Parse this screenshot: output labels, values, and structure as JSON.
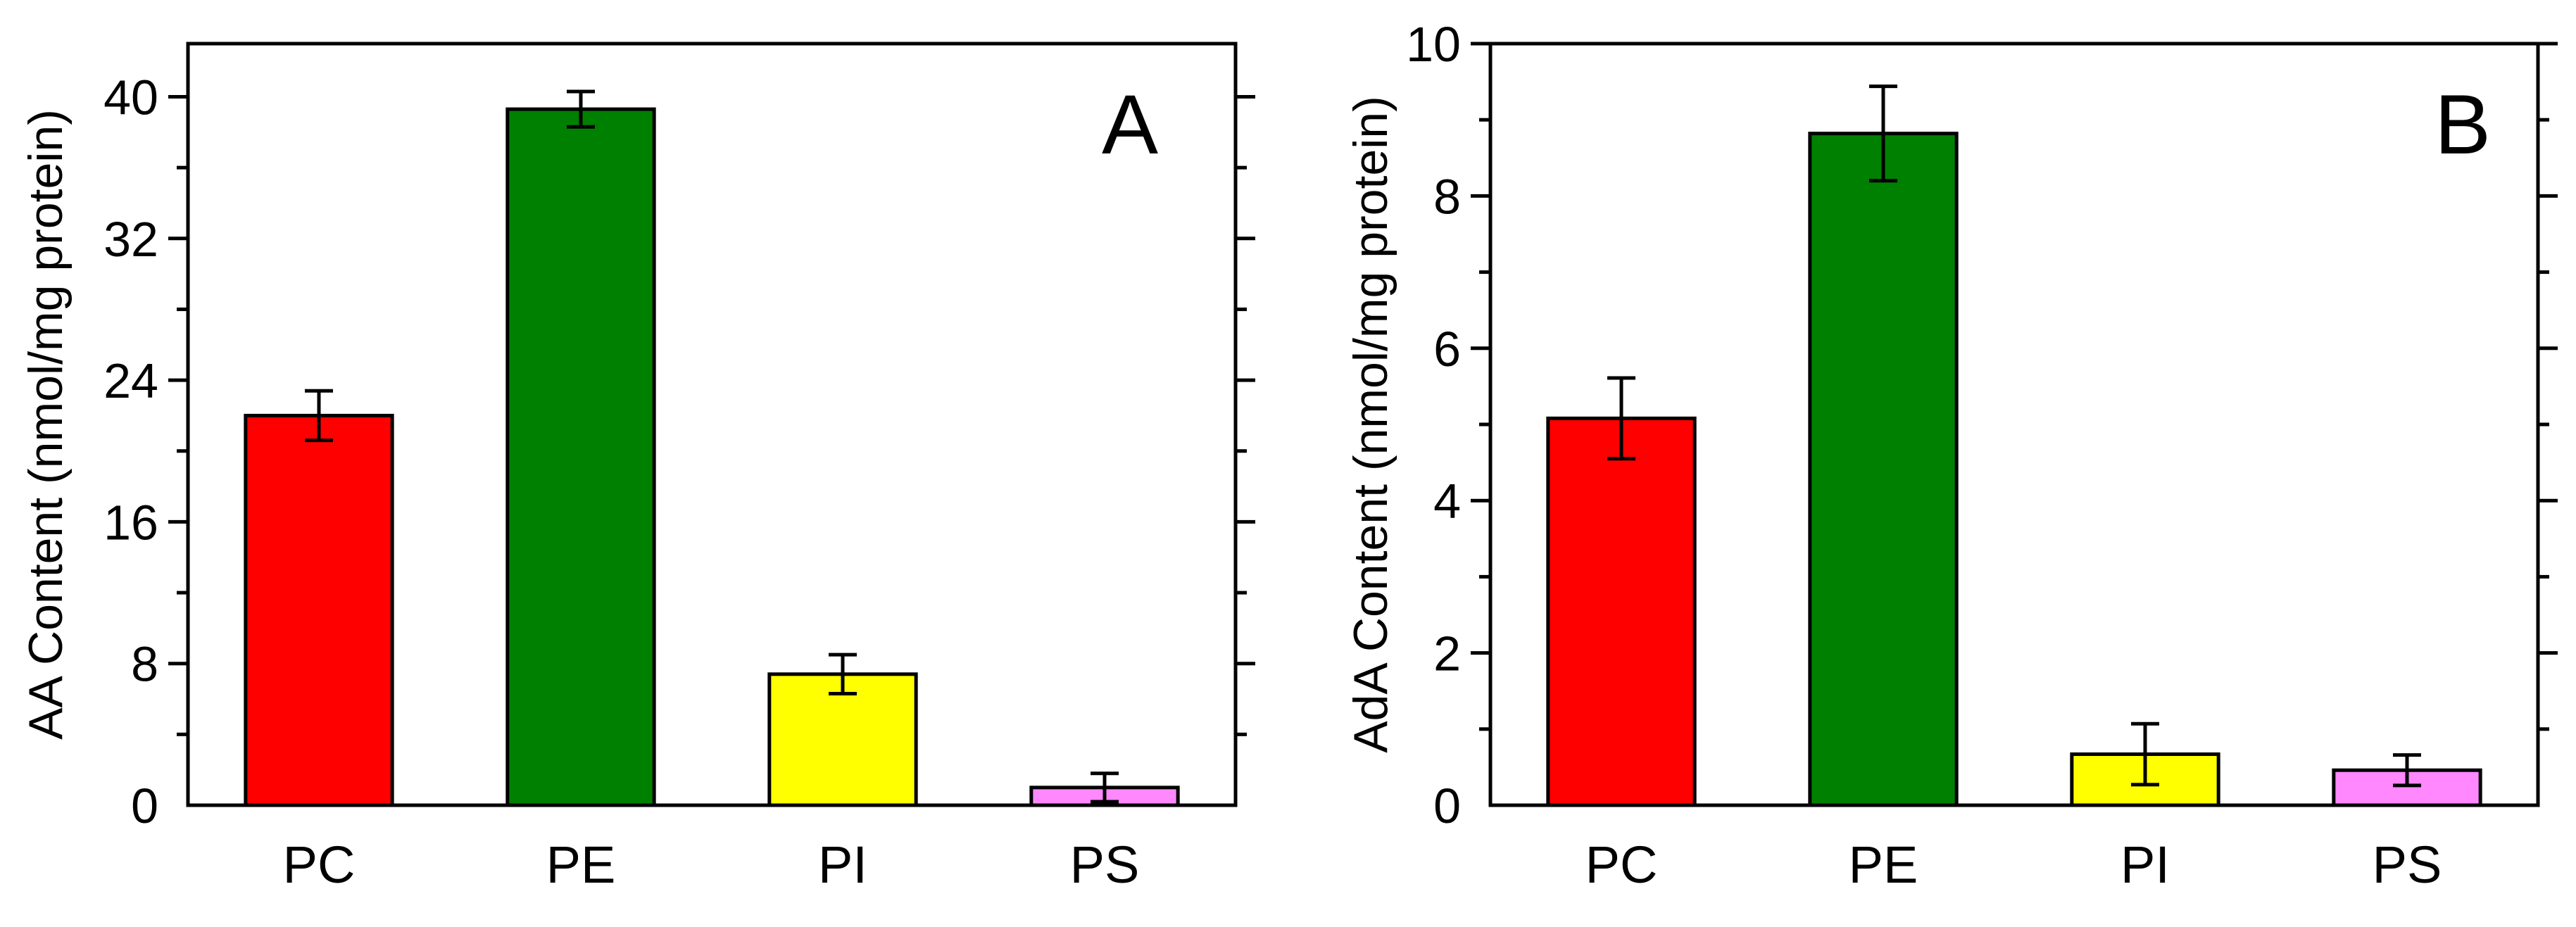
{
  "colors": {
    "PC": "#ff0000",
    "PE": "#008000",
    "PI": "#ffff00",
    "PS": "#ff88ff",
    "axis": "#000000",
    "background": "#ffffff"
  },
  "chart_data": [
    {
      "type": "bar",
      "panel_label": "A",
      "title": "",
      "xlabel": "",
      "ylabel": "AA Content (nmol/mg protein)",
      "categories": [
        "PC",
        "PE",
        "PI",
        "PS"
      ],
      "values": [
        22.0,
        39.3,
        7.4,
        1.0
      ],
      "errors": [
        1.4,
        1.0,
        1.1,
        0.8
      ],
      "ylim": [
        0,
        43
      ],
      "yticks": [
        0,
        8,
        16,
        24,
        32,
        40
      ],
      "ytick_labels": [
        "0",
        "8",
        "16",
        "24",
        "32",
        "40"
      ],
      "grid": false
    },
    {
      "type": "bar",
      "panel_label": "B",
      "title": "",
      "xlabel": "",
      "ylabel": "AdA Content (nmol/mg protein)",
      "categories": [
        "PC",
        "PE",
        "PI",
        "PS"
      ],
      "values": [
        5.08,
        8.82,
        0.67,
        0.46
      ],
      "errors": [
        0.53,
        0.62,
        0.4,
        0.2
      ],
      "ylim": [
        0,
        10
      ],
      "yticks": [
        0,
        2,
        4,
        6,
        8,
        10
      ],
      "ytick_labels": [
        "0",
        "2",
        "4",
        "6",
        "8",
        "10"
      ],
      "grid": false
    }
  ]
}
